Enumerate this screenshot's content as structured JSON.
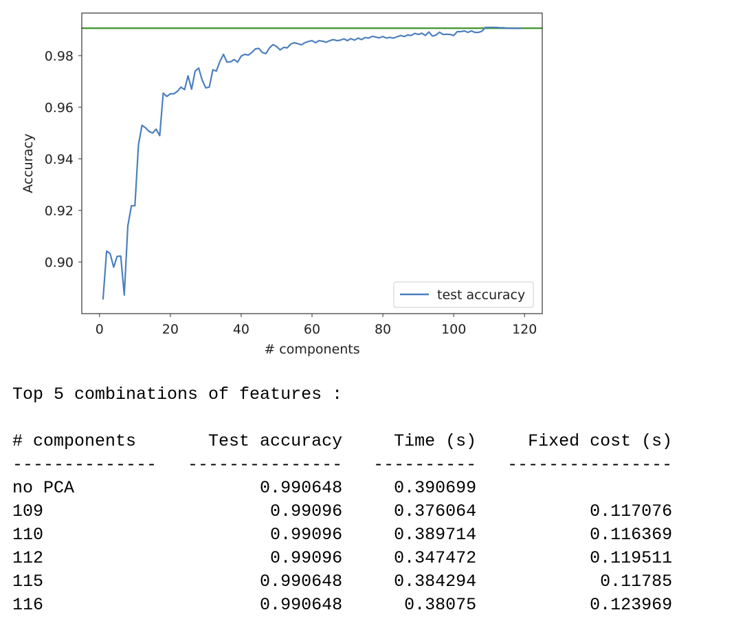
{
  "chart_data": {
    "type": "line",
    "xlabel": "# components",
    "ylabel": "Accuracy",
    "xlim": [
      -5,
      125
    ],
    "ylim": [
      0.88,
      0.9965
    ],
    "x_ticks": [
      0,
      20,
      40,
      60,
      80,
      100,
      120
    ],
    "y_ticks": [
      0.9,
      0.92,
      0.94,
      0.96,
      0.98
    ],
    "legend": {
      "position": "lower right",
      "entries": [
        "test accuracy"
      ]
    },
    "grid": false,
    "series": [
      {
        "name": "test accuracy",
        "color": "#4a7fbf",
        "x": [
          1,
          2,
          3,
          4,
          5,
          6,
          7,
          8,
          9,
          10,
          11,
          12,
          13,
          14,
          15,
          16,
          17,
          18,
          19,
          20,
          21,
          22,
          23,
          24,
          25,
          26,
          27,
          28,
          29,
          30,
          31,
          32,
          33,
          34,
          35,
          36,
          37,
          38,
          39,
          40,
          41,
          42,
          43,
          44,
          45,
          46,
          47,
          48,
          49,
          50,
          51,
          52,
          53,
          54,
          55,
          56,
          57,
          58,
          59,
          60,
          61,
          62,
          63,
          64,
          65,
          66,
          67,
          68,
          69,
          70,
          71,
          72,
          73,
          74,
          75,
          76,
          77,
          78,
          79,
          80,
          81,
          82,
          83,
          84,
          85,
          86,
          87,
          88,
          89,
          90,
          91,
          92,
          93,
          94,
          95,
          96,
          97,
          98,
          99,
          100,
          101,
          102,
          103,
          104,
          105,
          106,
          107,
          108,
          109,
          110,
          111,
          112,
          113,
          114,
          115,
          116,
          117,
          118,
          119
        ],
        "values": [
          0.8855,
          0.9042,
          0.9033,
          0.898,
          0.9022,
          0.9023,
          0.8872,
          0.914,
          0.9218,
          0.9218,
          0.9455,
          0.953,
          0.952,
          0.9506,
          0.95,
          0.9515,
          0.949,
          0.9655,
          0.9642,
          0.9652,
          0.9652,
          0.9662,
          0.9678,
          0.9668,
          0.9722,
          0.967,
          0.974,
          0.9752,
          0.9705,
          0.9675,
          0.9678,
          0.9745,
          0.974,
          0.9778,
          0.9805,
          0.9775,
          0.9776,
          0.9785,
          0.9775,
          0.9798,
          0.9805,
          0.9802,
          0.9812,
          0.9826,
          0.9828,
          0.9812,
          0.9808,
          0.983,
          0.9843,
          0.9835,
          0.9822,
          0.9832,
          0.983,
          0.9845,
          0.985,
          0.9846,
          0.9842,
          0.985,
          0.9855,
          0.9858,
          0.985,
          0.9858,
          0.9856,
          0.9852,
          0.9858,
          0.9862,
          0.9858,
          0.986,
          0.9865,
          0.9858,
          0.9866,
          0.986,
          0.9868,
          0.9862,
          0.987,
          0.9868,
          0.9875,
          0.9872,
          0.9869,
          0.9874,
          0.9868,
          0.9871,
          0.9868,
          0.9873,
          0.9878,
          0.9874,
          0.988,
          0.9878,
          0.9886,
          0.9882,
          0.9887,
          0.9878,
          0.9892,
          0.9876,
          0.988,
          0.9891,
          0.9882,
          0.9883,
          0.9882,
          0.9878,
          0.9893,
          0.9893,
          0.9896,
          0.989,
          0.9896,
          0.989,
          0.989,
          0.9895,
          0.99096,
          0.99096,
          0.99096,
          0.99096,
          0.9908,
          0.9908,
          0.990648,
          0.990648,
          0.9906,
          0.9906,
          0.9906
        ]
      }
    ],
    "reference_line": {
      "y": 0.990648,
      "color": "#4a9a3a"
    }
  },
  "caption": "Top 5 combinations of features :",
  "results_table": {
    "columns": [
      "# components",
      "Test accuracy",
      "Time (s)",
      "Fixed cost (s)"
    ],
    "rows": [
      [
        "no PCA",
        "0.990648",
        "0.390699",
        ""
      ],
      [
        "109",
        "0.99096",
        "0.376064",
        "0.117076"
      ],
      [
        "110",
        "0.99096",
        "0.389714",
        "0.116369"
      ],
      [
        "112",
        "0.99096",
        "0.347472",
        "0.119511"
      ],
      [
        "115",
        "0.990648",
        "0.384294",
        "0.11785"
      ],
      [
        "116",
        "0.990648",
        "0.38075",
        "0.123969"
      ]
    ]
  }
}
